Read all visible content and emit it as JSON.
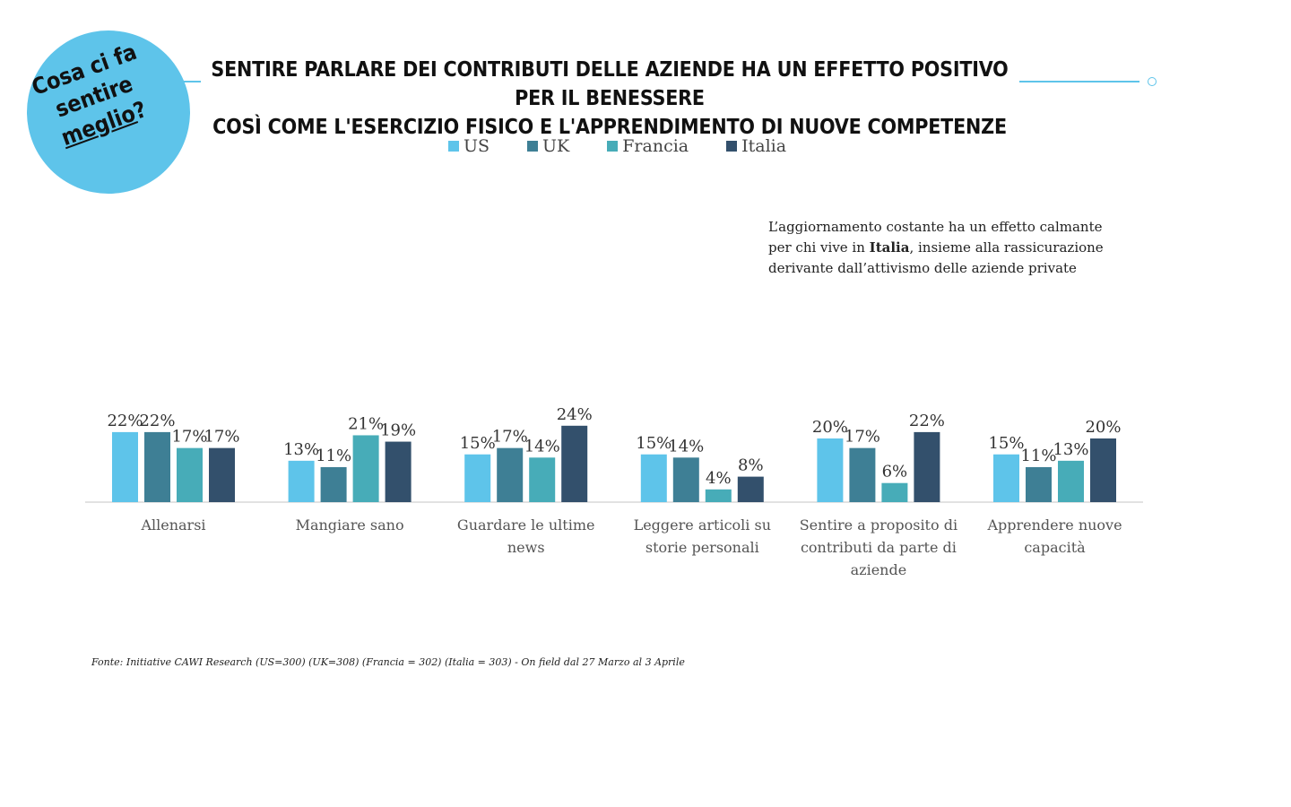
{
  "badge": {
    "line1": "Cosa ci fa",
    "line2": "sentire",
    "line3": "meglio",
    "line3_suffix": "?"
  },
  "header": {
    "title_line1": "SENTIRE PARLARE DEI CONTRIBUTI DELLE AZIENDE HA UN EFFETTO POSITIVO PER IL BENESSERE",
    "title_line2": "COSÌ COME L'ESERCIZIO FISICO E L'APPRENDIMENTO DI NUOVE COMPETENZE"
  },
  "note": {
    "part1": "L’aggiornamento costante ha un effetto calmante per chi vive in ",
    "bold": "Italia",
    "part2": ", insieme alla rassicurazione derivante dall’attivismo delle aziende private"
  },
  "source": "Fonte: Initiative CAWI Research (US=300) (UK=308) (Francia = 302) (Italia = 303) -  On field dal 27 Marzo al 3 Aprile",
  "colors": {
    "badge": "#5ec4ea",
    "axis": "#d9d9d9"
  },
  "chart_data": {
    "type": "bar",
    "legend_position": "top",
    "grid": false,
    "ylim": [
      0,
      30
    ],
    "categories": [
      "Allenarsi",
      "Mangiare sano",
      "Guardare le ultime news",
      "Leggere articoli su storie personali",
      "Sentire a proposito di contributi da parte di aziende",
      "Apprendere nuove capacità"
    ],
    "category_lines": [
      [
        "Allenarsi"
      ],
      [
        "Mangiare sano"
      ],
      [
        "Guardare le ultime",
        "news"
      ],
      [
        "Leggere articoli su",
        "storie personali"
      ],
      [
        "Sentire a proposito di",
        "contributi da parte di",
        "aziende"
      ],
      [
        "Apprendere nuove",
        "capacità"
      ]
    ],
    "series": [
      {
        "name": "US",
        "color": "#5ec4ea",
        "values": [
          22,
          13,
          15,
          15,
          20,
          15
        ],
        "labels": [
          "22%",
          "13%",
          "15%",
          "15%",
          "20%",
          "15%"
        ]
      },
      {
        "name": "UK",
        "color": "#3e7f95",
        "values": [
          22,
          11,
          17,
          14,
          17,
          11
        ],
        "labels": [
          "22%",
          "11%",
          "17%",
          "14%",
          "17%",
          "11%"
        ]
      },
      {
        "name": "Francia",
        "color": "#47acb8",
        "values": [
          17,
          21,
          14,
          4,
          6,
          13
        ],
        "labels": [
          "17%",
          "21%",
          "14%",
          "4%",
          "6%",
          "13%"
        ]
      },
      {
        "name": "Italia",
        "color": "#33506c",
        "values": [
          17,
          19,
          24,
          8,
          22,
          20
        ],
        "labels": [
          "17%",
          "19%",
          "24%",
          "8%",
          "22%",
          "20%"
        ]
      }
    ]
  }
}
